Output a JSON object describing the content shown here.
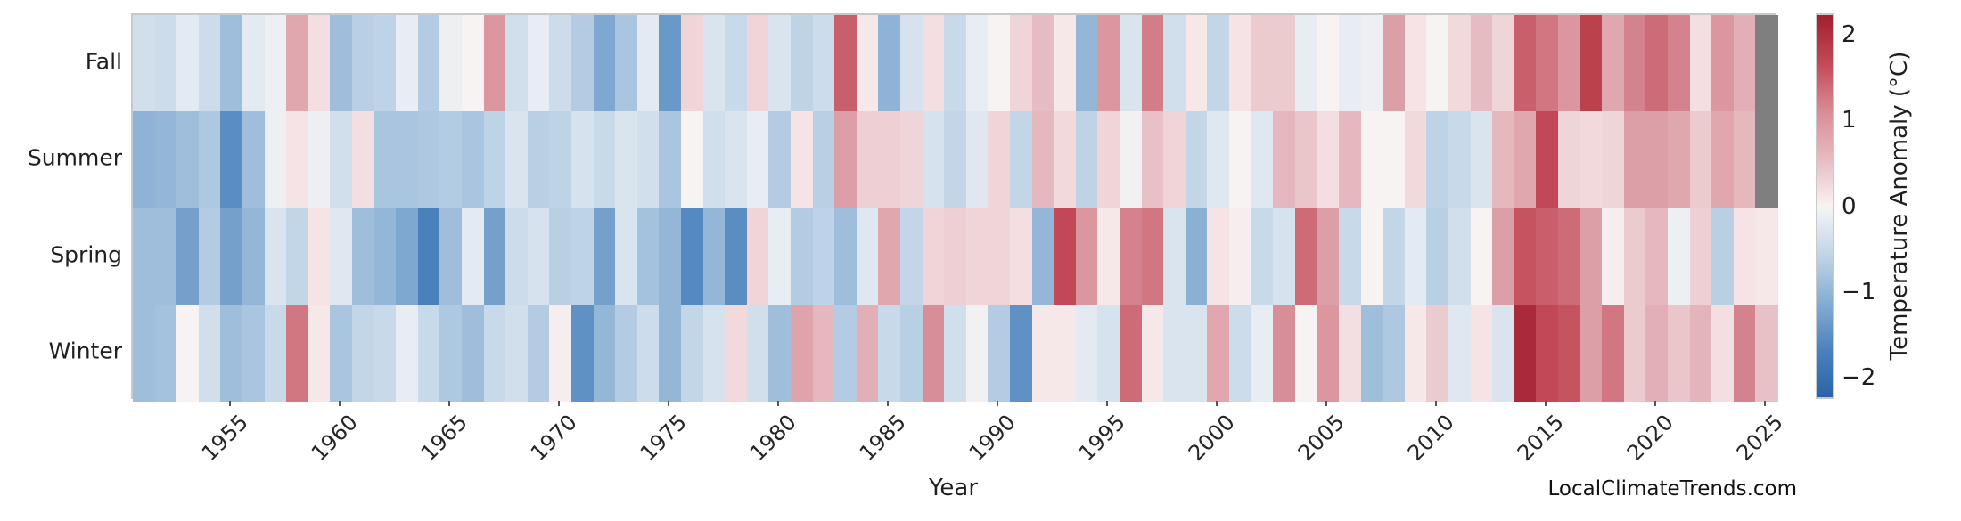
{
  "watermark": "LocalClimateTrends.com",
  "chart_data": {
    "type": "heatmap",
    "title": "",
    "xlabel": "Year",
    "ylabel": "",
    "rows": [
      "Fall",
      "Summer",
      "Spring",
      "Winter"
    ],
    "years": [
      1951,
      1952,
      1953,
      1954,
      1955,
      1956,
      1957,
      1958,
      1959,
      1960,
      1961,
      1962,
      1963,
      1964,
      1965,
      1966,
      1967,
      1968,
      1969,
      1970,
      1971,
      1972,
      1973,
      1974,
      1975,
      1976,
      1977,
      1978,
      1979,
      1980,
      1981,
      1982,
      1983,
      1984,
      1985,
      1986,
      1987,
      1988,
      1989,
      1990,
      1991,
      1992,
      1993,
      1994,
      1995,
      1996,
      1997,
      1998,
      1999,
      2000,
      2001,
      2002,
      2003,
      2004,
      2005,
      2006,
      2007,
      2008,
      2009,
      2010,
      2011,
      2012,
      2013,
      2014,
      2015,
      2016,
      2017,
      2018,
      2019,
      2020,
      2021,
      2022,
      2023,
      2024,
      2025
    ],
    "x_tick_years": [
      1955,
      1960,
      1965,
      1970,
      1975,
      1980,
      1985,
      1990,
      1995,
      2000,
      2005,
      2010,
      2015,
      2020,
      2025
    ],
    "series": [
      {
        "name": "Fall",
        "values": [
          -0.4,
          -0.45,
          -0.2,
          -0.45,
          -0.9,
          -0.2,
          -0.1,
          0.8,
          0.2,
          -0.9,
          -0.65,
          -0.6,
          -0.15,
          -0.7,
          -0.1,
          0.0,
          1.0,
          -0.4,
          -0.15,
          -0.45,
          -0.7,
          -1.2,
          -0.8,
          -0.2,
          -1.4,
          0.3,
          -0.3,
          -0.5,
          0.3,
          -0.3,
          -0.6,
          -0.45,
          1.5,
          0.1,
          -1.05,
          -0.35,
          0.2,
          -0.5,
          -0.15,
          0.0,
          0.3,
          0.55,
          0.1,
          -1.0,
          1.0,
          -0.3,
          1.25,
          -0.4,
          0.1,
          -0.55,
          0.15,
          0.4,
          0.4,
          -0.15,
          0.0,
          -0.15,
          -0.1,
          0.9,
          0.15,
          0.0,
          0.25,
          0.55,
          0.3,
          1.5,
          1.3,
          1.0,
          1.8,
          0.8,
          1.2,
          1.4,
          1.2,
          0.2,
          1.0,
          0.7,
          null
        ]
      },
      {
        "name": "Summer",
        "values": [
          -1.05,
          -1.0,
          -0.9,
          -0.75,
          -1.55,
          -0.9,
          -0.1,
          0.15,
          -0.1,
          -0.4,
          0.2,
          -0.8,
          -0.8,
          -0.75,
          -0.7,
          -0.8,
          -0.6,
          -0.3,
          -0.65,
          -0.6,
          -0.35,
          -0.5,
          -0.3,
          -0.4,
          -0.8,
          0.0,
          -0.4,
          -0.3,
          -0.15,
          -0.7,
          0.15,
          -0.65,
          0.9,
          0.35,
          0.35,
          0.3,
          -0.35,
          -0.55,
          -0.25,
          0.3,
          -0.55,
          0.6,
          0.25,
          -0.6,
          0.3,
          -0.05,
          0.5,
          0.3,
          -0.55,
          -0.25,
          0.0,
          -0.25,
          0.6,
          0.45,
          0.2,
          0.6,
          0.0,
          0.0,
          0.25,
          -0.6,
          -0.5,
          -0.3,
          0.6,
          0.8,
          1.7,
          0.3,
          0.25,
          0.3,
          0.9,
          0.9,
          0.8,
          0.4,
          0.8,
          0.6,
          null
        ]
      },
      {
        "name": "Spring",
        "values": [
          -0.9,
          -0.9,
          -1.3,
          -0.7,
          -1.3,
          -1.0,
          -0.3,
          -0.55,
          0.15,
          -0.25,
          -0.9,
          -1.0,
          -1.2,
          -1.7,
          -0.9,
          -0.2,
          -1.3,
          -0.45,
          -0.35,
          -0.65,
          -0.6,
          -1.3,
          -0.3,
          -0.85,
          -1.0,
          -1.6,
          -1.0,
          -1.55,
          0.3,
          -0.15,
          -0.7,
          -0.6,
          -0.9,
          -0.25,
          0.8,
          -0.55,
          0.3,
          0.35,
          0.3,
          0.3,
          0.2,
          -1.0,
          1.7,
          1.0,
          0.1,
          1.2,
          1.3,
          -0.3,
          -1.1,
          0.15,
          0.05,
          -0.5,
          -0.35,
          1.4,
          0.9,
          -0.5,
          0.0,
          -0.55,
          -0.2,
          -0.65,
          -0.4,
          0.0,
          0.9,
          1.6,
          1.5,
          1.4,
          0.9,
          0.05,
          0.4,
          0.6,
          -0.1,
          0.35,
          -0.65,
          0.15,
          0.1
        ]
      },
      {
        "name": "Winter",
        "values": [
          -0.9,
          -0.85,
          0.0,
          -0.4,
          -0.9,
          -0.8,
          -0.5,
          1.3,
          0.1,
          -0.8,
          -0.55,
          -0.5,
          -0.15,
          -0.5,
          -0.75,
          -0.9,
          -0.5,
          -0.4,
          -0.7,
          0.05,
          -1.5,
          -1.0,
          -0.7,
          -0.45,
          -1.0,
          -0.55,
          -0.35,
          0.25,
          -0.4,
          -0.9,
          0.85,
          0.6,
          -0.7,
          0.7,
          -0.5,
          -0.65,
          1.1,
          -0.4,
          -0.05,
          -0.7,
          -1.5,
          0.1,
          0.1,
          -0.2,
          -0.35,
          1.4,
          0.1,
          -0.3,
          -0.3,
          0.8,
          -0.45,
          -0.15,
          1.1,
          0.0,
          1.0,
          0.2,
          -0.9,
          -0.75,
          0.1,
          0.4,
          -0.25,
          0.15,
          -0.3,
          2.1,
          1.7,
          1.6,
          0.9,
          1.3,
          0.4,
          0.7,
          0.45,
          0.65,
          0.2,
          1.2,
          0.5
        ]
      }
    ],
    "colorbar": {
      "label": "Temperature Anomaly (°C)",
      "tick_labels": [
        "2",
        "1",
        "0",
        "−1",
        "−2"
      ],
      "tick_values": [
        2,
        1,
        0,
        -1,
        -2
      ],
      "vmin": -2.25,
      "vmax": 2.25
    },
    "colorscale": [
      [
        -2.25,
        "#2b63a8"
      ],
      [
        -1.7,
        "#4a81bd"
      ],
      [
        -1.1,
        "#8ab0d4"
      ],
      [
        -0.55,
        "#c3d6e8"
      ],
      [
        -0.15,
        "#e8edf3"
      ],
      [
        0.0,
        "#f7f3f2"
      ],
      [
        0.15,
        "#f5e3e5"
      ],
      [
        0.55,
        "#e6bcc2"
      ],
      [
        1.1,
        "#d88e98"
      ],
      [
        1.7,
        "#c14854"
      ],
      [
        2.25,
        "#a21f30"
      ]
    ],
    "missing_value_color": "#7f7f7f",
    "legend_position": "right-colorbar",
    "grid": false
  }
}
